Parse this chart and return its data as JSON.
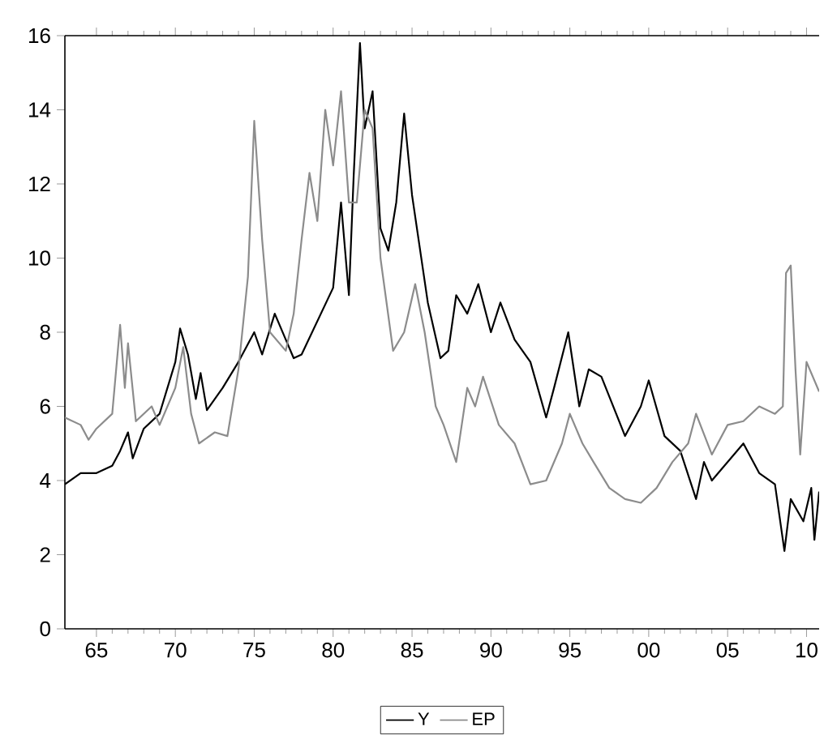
{
  "chart_data": {
    "type": "line",
    "xlim": [
      1963,
      2010.8
    ],
    "ylim": [
      0,
      16
    ],
    "xticks": [
      {
        "value": 1965,
        "label": "65"
      },
      {
        "value": 1970,
        "label": "70"
      },
      {
        "value": 1975,
        "label": "75"
      },
      {
        "value": 1980,
        "label": "80"
      },
      {
        "value": 1985,
        "label": "85"
      },
      {
        "value": 1990,
        "label": "90"
      },
      {
        "value": 1995,
        "label": "95"
      },
      {
        "value": 2000,
        "label": "00"
      },
      {
        "value": 2005,
        "label": "05"
      },
      {
        "value": 2010,
        "label": "10"
      }
    ],
    "yticks": [
      0,
      2,
      4,
      6,
      8,
      10,
      12,
      14,
      16
    ],
    "legend": "bottom",
    "grid": false,
    "series": [
      {
        "name": "Y",
        "color": "#000000",
        "x": [
          1963,
          1964,
          1965,
          1966,
          1966.5,
          1967,
          1967.3,
          1968,
          1969,
          1970,
          1970.3,
          1970.8,
          1971.3,
          1971.6,
          1972,
          1973,
          1974,
          1975,
          1975.5,
          1976.3,
          1977,
          1977.5,
          1978,
          1979,
          1980,
          1980.5,
          1981,
          1981.3,
          1981.7,
          1982,
          1982.5,
          1983,
          1983.5,
          1984,
          1984.5,
          1985,
          1986,
          1986.8,
          1987.3,
          1987.8,
          1988.5,
          1989.2,
          1990,
          1990.6,
          1991.5,
          1992.5,
          1993.5,
          1994,
          1994.9,
          1995.6,
          1996.2,
          1997,
          1998.5,
          1999.5,
          2000,
          2001,
          2002,
          2003,
          2003.5,
          2004,
          2005,
          2006,
          2007,
          2008,
          2008.6,
          2009,
          2009.8,
          2010.3,
          2010.5,
          2010.8
        ],
        "values": [
          3.9,
          4.2,
          4.2,
          4.4,
          4.8,
          5.3,
          4.6,
          5.4,
          5.8,
          7.2,
          8.1,
          7.4,
          6.2,
          6.9,
          5.9,
          6.5,
          7.2,
          8.0,
          7.4,
          8.5,
          7.8,
          7.3,
          7.4,
          8.3,
          9.2,
          11.5,
          9.0,
          12.2,
          15.8,
          13.5,
          14.5,
          10.8,
          10.2,
          11.5,
          13.9,
          11.7,
          8.8,
          7.3,
          7.5,
          9.0,
          8.5,
          9.3,
          8.0,
          8.8,
          7.8,
          7.2,
          5.7,
          6.5,
          8.0,
          6.0,
          7.0,
          6.8,
          5.2,
          6.0,
          6.7,
          5.2,
          4.8,
          3.5,
          4.5,
          4.0,
          4.5,
          5.0,
          4.2,
          3.9,
          2.1,
          3.5,
          2.9,
          3.8,
          2.4,
          3.7
        ]
      },
      {
        "name": "EP",
        "color": "#8c8c8c",
        "x": [
          1963,
          1964,
          1964.5,
          1965,
          1966,
          1966.5,
          1966.8,
          1967,
          1967.5,
          1968.5,
          1969,
          1970,
          1970.5,
          1971,
          1971.5,
          1972.5,
          1973.3,
          1974,
          1974.6,
          1975,
          1975.5,
          1976,
          1977,
          1977.5,
          1978,
          1978.5,
          1979,
          1979.5,
          1980,
          1980.5,
          1981,
          1981.5,
          1982,
          1982.5,
          1983,
          1983.8,
          1984.5,
          1985.2,
          1985.8,
          1986.5,
          1987,
          1987.8,
          1988.5,
          1989,
          1989.5,
          1990.5,
          1991.5,
          1992.5,
          1993.5,
          1994.5,
          1995,
          1995.8,
          1996.5,
          1997.5,
          1998.5,
          1999.5,
          2000.5,
          2001.5,
          2002.5,
          2003,
          2004,
          2005,
          2006,
          2007,
          2008,
          2008.5,
          2008.7,
          2009,
          2009.3,
          2009.6,
          2010,
          2010.8
        ],
        "values": [
          5.7,
          5.5,
          5.1,
          5.4,
          5.8,
          8.2,
          6.5,
          7.7,
          5.6,
          6.0,
          5.5,
          6.5,
          7.6,
          5.8,
          5.0,
          5.3,
          5.2,
          7.0,
          9.5,
          13.7,
          10.5,
          8.0,
          7.5,
          8.5,
          10.5,
          12.3,
          11.0,
          14.0,
          12.5,
          14.5,
          11.5,
          11.5,
          14.0,
          13.5,
          10.0,
          7.5,
          8.0,
          9.3,
          8.0,
          6.0,
          5.5,
          4.5,
          6.5,
          6.0,
          6.8,
          5.5,
          5.0,
          3.9,
          4.0,
          5.0,
          5.8,
          5.0,
          4.5,
          3.8,
          3.5,
          3.4,
          3.8,
          4.5,
          5.0,
          5.8,
          4.7,
          5.5,
          5.6,
          6.0,
          5.8,
          6.0,
          9.6,
          9.8,
          7.0,
          4.7,
          7.2,
          6.4
        ]
      }
    ]
  }
}
